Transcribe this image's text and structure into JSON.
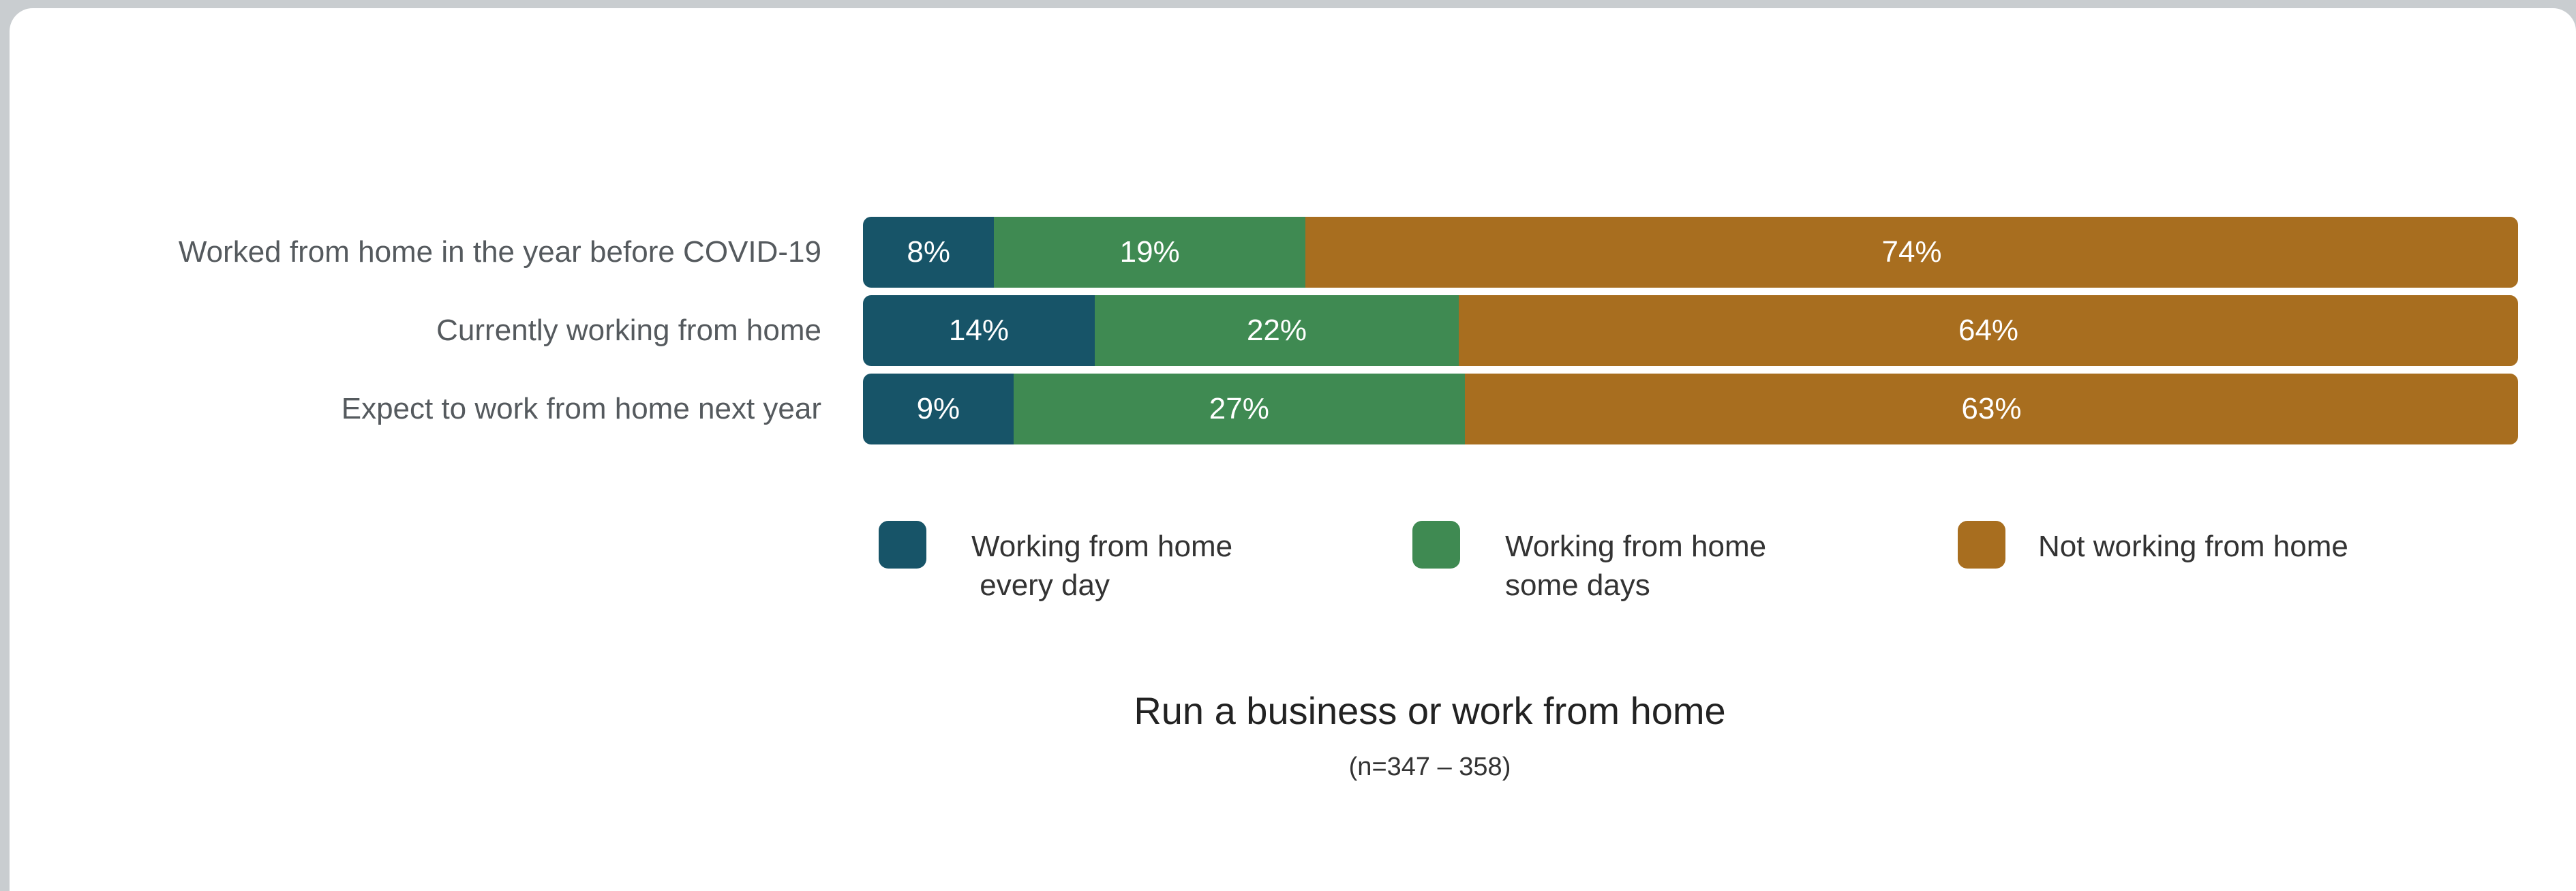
{
  "chart_data": {
    "type": "bar",
    "orientation": "horizontal",
    "stacked": true,
    "normalized": true,
    "categories": [
      "Worked from home in the year before COVID-19",
      "Currently working from home",
      "Expect to work from home next year"
    ],
    "series": [
      {
        "name": "Working from home every day",
        "legend_text": "Working from home\n every day",
        "color": "#175468",
        "values": [
          8,
          14,
          9
        ]
      },
      {
        "name": "Working from home some days",
        "legend_text": "Working from home\nsome days",
        "color": "#3f8a52",
        "values": [
          19,
          22,
          27
        ]
      },
      {
        "name": "Not working from home",
        "legend_text": "Not working from home",
        "color": "#a86e1f",
        "values": [
          74,
          64,
          63
        ]
      }
    ],
    "value_format": "{v}%",
    "title": "Run a business or work from home",
    "subtitle": "(n=347 – 358)",
    "legend_position": "bottom"
  }
}
